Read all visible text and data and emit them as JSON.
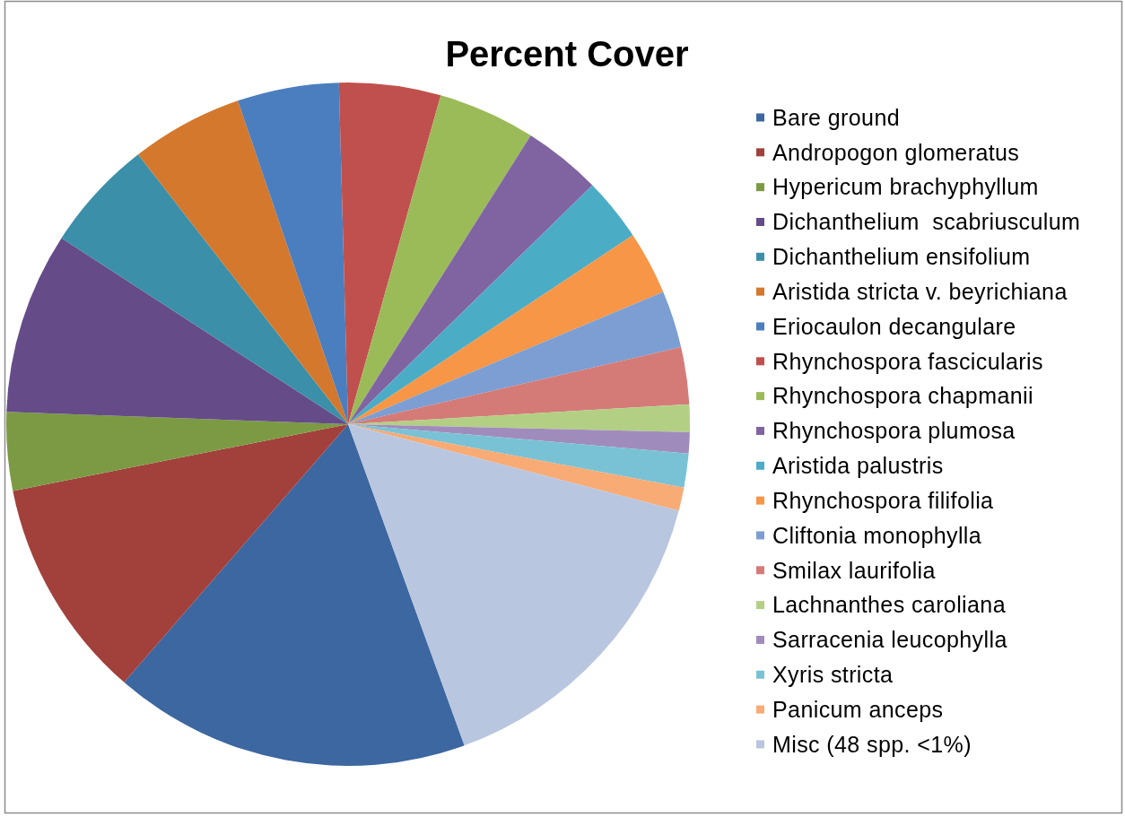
{
  "chart_data": {
    "type": "pie",
    "title": "Percent Cover",
    "categories": [
      "Bare ground",
      "Andropogon glomeratus",
      "Hypericum brachyphyllum",
      "Dichanthelium  scabriusculum",
      "Dichanthelium ensifolium",
      "Aristida stricta v. beyrichiana",
      "Eriocaulon decangulare",
      "Rhynchospora fascicularis",
      "Rhynchospora chapmanii",
      "Rhynchospora plumosa",
      "Aristida palustris",
      "Rhynchospora filifolia",
      "Cliftonia monophylla",
      "Smilax laurifolia",
      "Lachnanthes caroliana",
      "Sarracenia leucophylla",
      "Xyris stricta",
      "Panicum anceps",
      "Misc (48 spp. <1%)"
    ],
    "values": [
      16.9,
      10.5,
      3.7,
      8.6,
      5.3,
      5.3,
      4.8,
      4.8,
      4.6,
      3.7,
      3.0,
      3.0,
      2.7,
      2.7,
      1.3,
      1.0,
      1.6,
      1.1,
      15.4
    ],
    "colors": [
      "#3c67a0",
      "#a2403c",
      "#7c9a43",
      "#654b88",
      "#3b8fa8",
      "#d4782d",
      "#4a7ebf",
      "#c0504d",
      "#9bbb59",
      "#8064a2",
      "#4bacc6",
      "#f79646",
      "#7c9ed2",
      "#d47b78",
      "#b3cf84",
      "#a08cbc",
      "#79c2d5",
      "#f8ab74",
      "#b9c6e0"
    ],
    "legend": "right"
  }
}
